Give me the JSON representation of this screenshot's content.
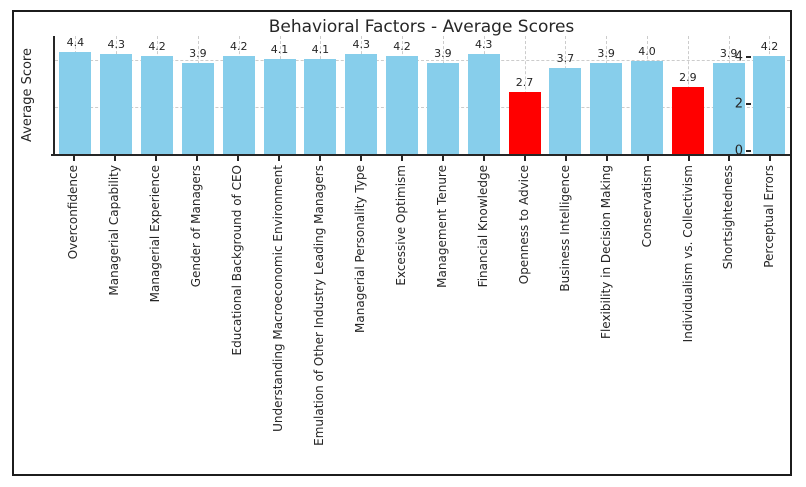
{
  "chart_data": {
    "type": "bar",
    "title": "Behavioral Factors - Average Scores",
    "xlabel": "",
    "ylabel": "Average Score",
    "ylim": [
      0,
      5.06
    ],
    "yticks": [
      0,
      2,
      4
    ],
    "grid": true,
    "grid_style": "dashed",
    "legend": "none",
    "categories": [
      "Overconfidence",
      "Managerial Capability",
      "Managerial Experience",
      "Gender of Managers",
      "Educational Background of CEO",
      "Understanding Macroeconomic Environment",
      "Emulation of Other Industry Leading Managers",
      "Managerial Personality Type",
      "Excessive Optimism",
      "Management Tenure",
      "Financial Knowledge",
      "Openness to Advice",
      "Business Intelligence",
      "Flexibility in Decision Making",
      "Conservatism",
      "Individualism vs. Collectivism",
      "Shortsightedness",
      "Perceptual Errors"
    ],
    "values": [
      4.4,
      4.3,
      4.2,
      3.9,
      4.2,
      4.1,
      4.1,
      4.3,
      4.2,
      3.9,
      4.3,
      2.7,
      3.7,
      3.9,
      4.0,
      2.9,
      3.9,
      4.2
    ],
    "bar_colors": [
      "#87CEEB",
      "#87CEEB",
      "#87CEEB",
      "#87CEEB",
      "#87CEEB",
      "#87CEEB",
      "#87CEEB",
      "#87CEEB",
      "#87CEEB",
      "#87CEEB",
      "#87CEEB",
      "#FF0000",
      "#87CEEB",
      "#87CEEB",
      "#87CEEB",
      "#FF0000",
      "#87CEEB",
      "#87CEEB"
    ],
    "colors": {
      "default_bar": "#87CEEB",
      "highlight_bar": "#FF0000",
      "gridline": "#cccccc",
      "text": "#262626",
      "figure_border": "#1c1c1c"
    }
  }
}
